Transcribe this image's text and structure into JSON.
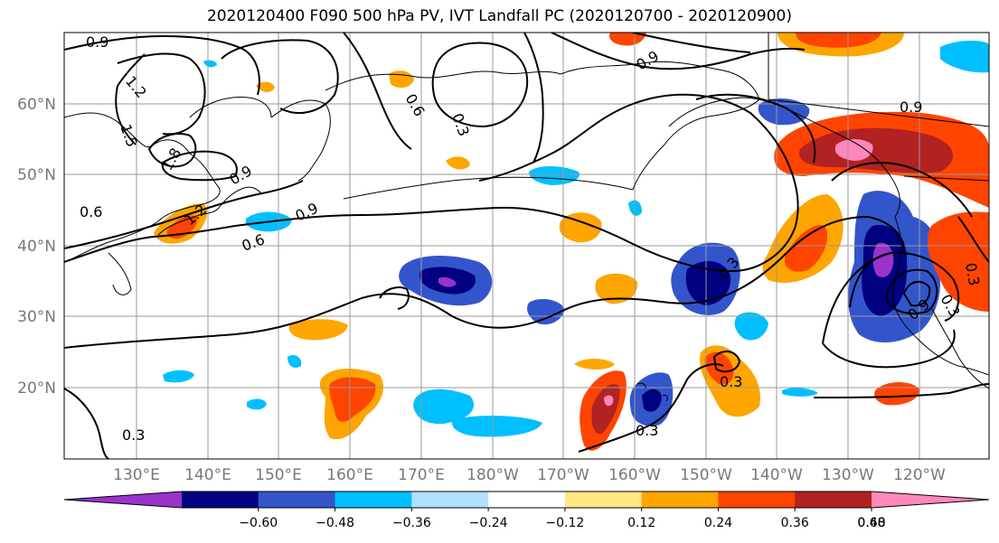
{
  "title": "2020120400 F090 500 hPa PV, IVT Landfall PC (2020120700 - 2020120900)",
  "lon_labels": [
    "130°E",
    "140°E",
    "150°E",
    "160°E",
    "170°E",
    "180°W",
    "170°W",
    "160°W",
    "150°W",
    "140°W",
    "130°W",
    "120°W"
  ],
  "lat_labels": [
    "60°N",
    "50°N",
    "40°N",
    "30°N",
    "20°N"
  ],
  "colorbar": {
    "ticks": [
      "−0.60",
      "−0.48",
      "−0.36",
      "−0.24",
      "−0.12",
      "0.12",
      "0.24",
      "0.36",
      "0.48",
      "0.60"
    ],
    "colors": [
      "#9933cc",
      "#000080",
      "#3355cc",
      "#00bfff",
      "#b0e0ff",
      "#ffffff",
      "#ffe680",
      "#ffa500",
      "#ff4400",
      "#b22222",
      "#ff88bb"
    ]
  },
  "contour_labels": [
    "0.9",
    "1.2",
    "1.5",
    "1.8",
    "0.9",
    "0.6",
    "1.2",
    "0.9",
    "0.6",
    "0.6",
    "0.3",
    "0.9",
    "0.9",
    "0.3",
    "0.3",
    "0.3",
    "0.3",
    "0.3",
    "0.3",
    "0.9"
  ]
}
